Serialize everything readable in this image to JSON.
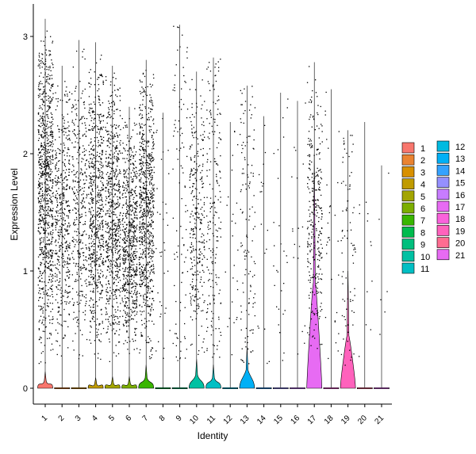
{
  "chart_data": {
    "type": "violin",
    "xlabel": "Identity",
    "ylabel": "Expression Level",
    "categories": [
      "1",
      "2",
      "3",
      "4",
      "5",
      "6",
      "7",
      "8",
      "9",
      "10",
      "11",
      "12",
      "13",
      "14",
      "15",
      "16",
      "17",
      "18",
      "19",
      "20",
      "21"
    ],
    "yticks": [
      0,
      1,
      2,
      3
    ],
    "ylim": [
      -0.15,
      3.3
    ],
    "colors": [
      "#F8766D",
      "#EA8331",
      "#D89000",
      "#C09B00",
      "#A3A500",
      "#7CAE00",
      "#39B600",
      "#00BB4E",
      "#00BF7D",
      "#00C1A3",
      "#00BFC4",
      "#00BAE0",
      "#00B0F6",
      "#35A2FF",
      "#9590FF",
      "#C77CFF",
      "#E76BF3",
      "#FA62DB",
      "#FF62BC",
      "#FF6C91",
      "#E76BF3"
    ],
    "series_stats": [
      {
        "name": "1",
        "max": 3.15,
        "violin_height": 0.14,
        "n_points": 900
      },
      {
        "name": "2",
        "max": 2.75,
        "violin_height": 0.0,
        "n_points": 450
      },
      {
        "name": "3",
        "max": 2.97,
        "violin_height": 0.0,
        "n_points": 350
      },
      {
        "name": "4",
        "max": 2.95,
        "violin_height": 0.09,
        "n_points": 650
      },
      {
        "name": "5",
        "max": 2.75,
        "violin_height": 0.1,
        "n_points": 650
      },
      {
        "name": "6",
        "max": 2.4,
        "violin_height": 0.1,
        "n_points": 650
      },
      {
        "name": "7",
        "max": 2.8,
        "violin_height": 0.2,
        "n_points": 750
      },
      {
        "name": "8",
        "max": 2.35,
        "violin_height": 0.0,
        "n_points": 35
      },
      {
        "name": "9",
        "max": 3.1,
        "violin_height": 0.0,
        "n_points": 100
      },
      {
        "name": "10",
        "max": 2.7,
        "violin_height": 0.25,
        "n_points": 300
      },
      {
        "name": "11",
        "max": 2.82,
        "violin_height": 0.2,
        "n_points": 200
      },
      {
        "name": "12",
        "max": 2.27,
        "violin_height": 0.0,
        "n_points": 25
      },
      {
        "name": "13",
        "max": 2.58,
        "violin_height": 0.35,
        "n_points": 130
      },
      {
        "name": "14",
        "max": 2.32,
        "violin_height": 0.0,
        "n_points": 18
      },
      {
        "name": "15",
        "max": 2.52,
        "violin_height": 0.0,
        "n_points": 28
      },
      {
        "name": "16",
        "max": 2.45,
        "violin_height": 0.0,
        "n_points": 18
      },
      {
        "name": "17",
        "max": 2.78,
        "violin_height": 2.0,
        "n_points": 300
      },
      {
        "name": "18",
        "max": 2.55,
        "violin_height": 0.0,
        "n_points": 30
      },
      {
        "name": "19",
        "max": 2.2,
        "violin_height": 1.0,
        "n_points": 80
      },
      {
        "name": "20",
        "max": 2.27,
        "violin_height": 0.0,
        "n_points": 12
      },
      {
        "name": "21",
        "max": 1.9,
        "violin_height": 0.0,
        "n_points": 6
      }
    ],
    "legend": {
      "placement": "right",
      "entries": [
        "1",
        "2",
        "3",
        "4",
        "5",
        "6",
        "7",
        "8",
        "9",
        "10",
        "11",
        "12",
        "13",
        "14",
        "15",
        "16",
        "17",
        "18",
        "19",
        "20",
        "21"
      ]
    }
  }
}
